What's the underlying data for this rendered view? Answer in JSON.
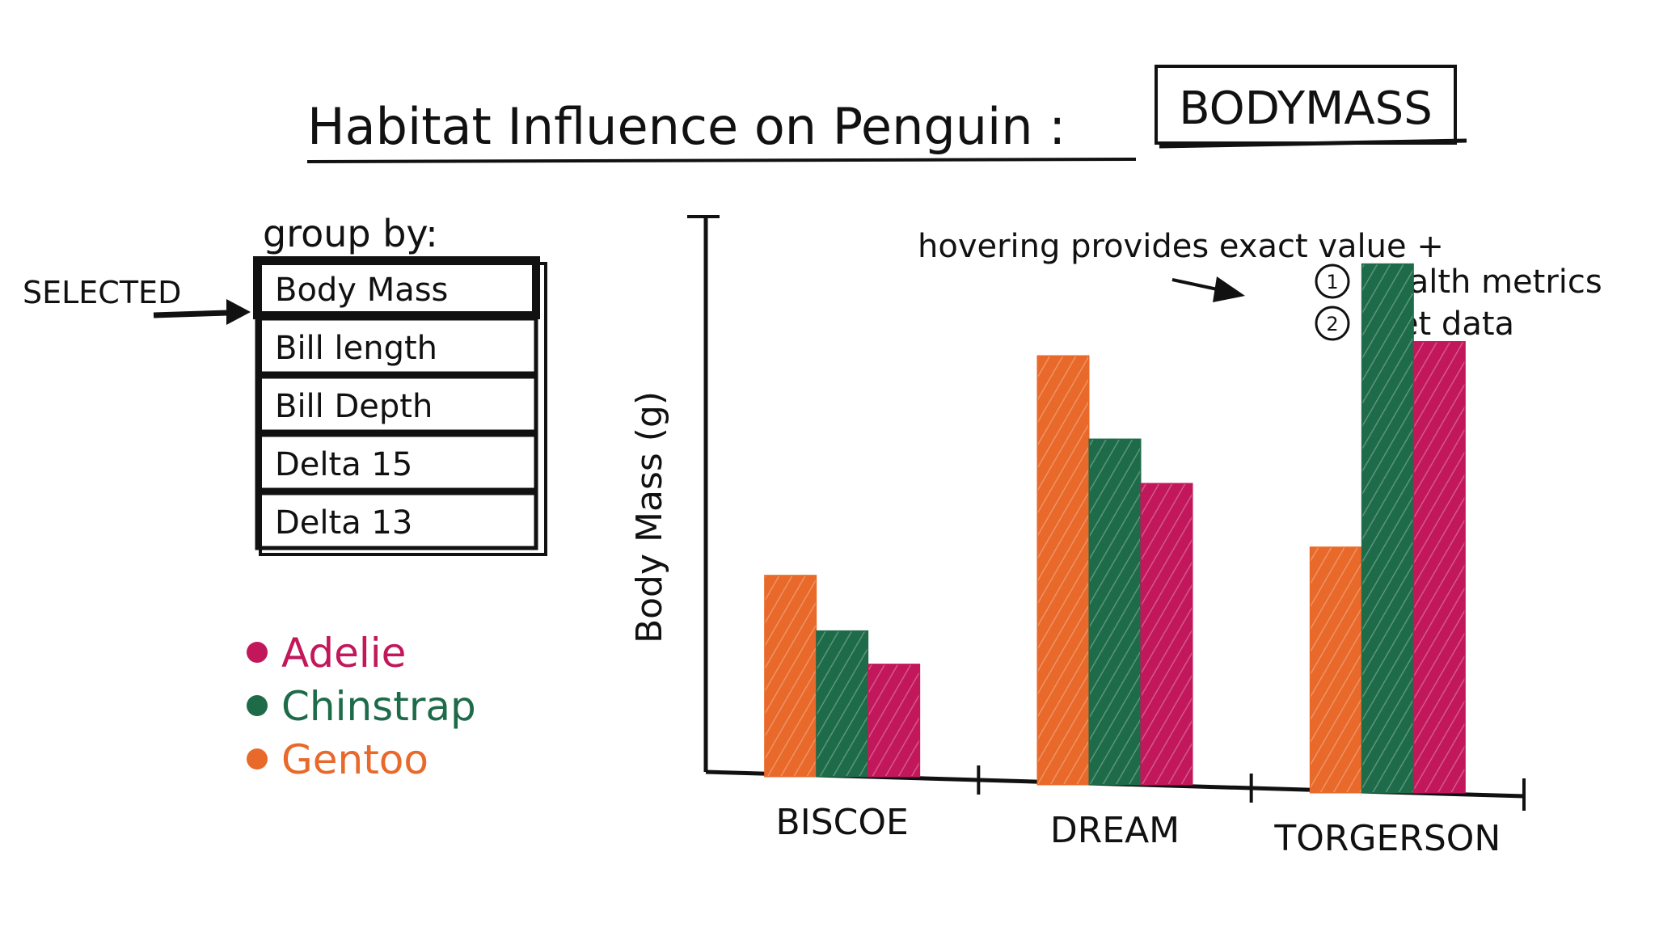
{
  "title": {
    "text": "Habitat Influence on Penguin :",
    "selected_metric": "BODYMASS"
  },
  "group_by": {
    "label": "group by:",
    "selected_marker": "SELECTED",
    "options": [
      "Body Mass",
      "Bill length",
      "Bill Depth",
      "Delta 15",
      "Delta 13"
    ],
    "selected_index": 0
  },
  "legend": [
    {
      "name": "Adelie",
      "color": "#c2185b"
    },
    {
      "name": "Chinstrap",
      "color": "#1e6b4a"
    },
    {
      "name": "Gentoo",
      "color": "#e8692a"
    }
  ],
  "annotation": {
    "text": "hovering provides exact value +",
    "items": [
      {
        "num": "1",
        "label": "Health metrics"
      },
      {
        "num": "2",
        "label": "Diet data"
      }
    ]
  },
  "chart_data": {
    "type": "bar",
    "categories": [
      "BISCOE",
      "DREAM",
      "TORGERSON"
    ],
    "ylabel": "Body Mass (g)",
    "xlabel": "",
    "ylim": [
      0,
      100
    ],
    "series": [
      {
        "name": "Gentoo",
        "color": "#e8692a",
        "values": [
          36,
          77,
          44
        ]
      },
      {
        "name": "Chinstrap",
        "color": "#1e6b4a",
        "values": [
          26,
          62,
          95
        ]
      },
      {
        "name": "Adelie",
        "color": "#c2185b",
        "values": [
          20,
          54,
          81
        ]
      }
    ]
  }
}
